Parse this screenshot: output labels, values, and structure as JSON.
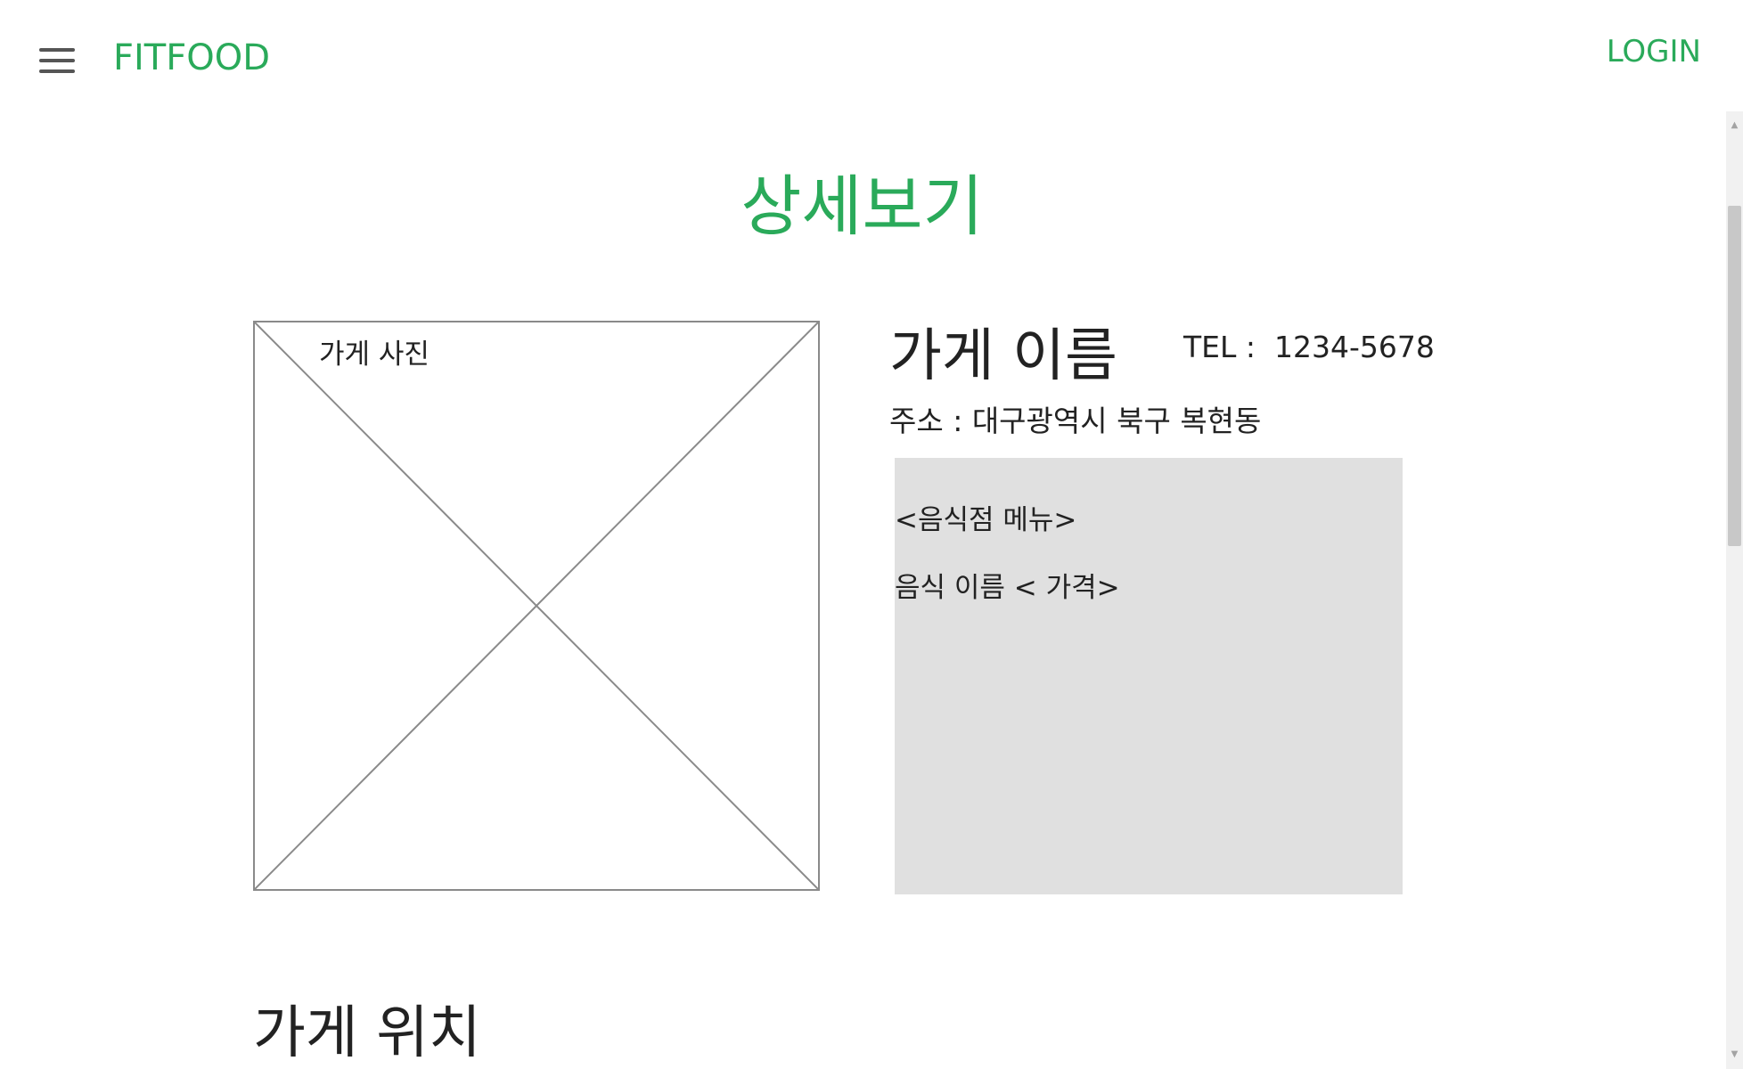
{
  "header": {
    "menu_icon": "hamburger-menu-icon",
    "brand": "FITFOOD",
    "login_label": "LOGIN",
    "brand_color": "#2aaa5a"
  },
  "page": {
    "title": "상세보기"
  },
  "store": {
    "photo_label": "가게 사진",
    "name": "가게 이름",
    "tel": "TEL :  1234-5678",
    "address": "주소 : 대구광역시 북구 복현동"
  },
  "menu": {
    "heading": "<음식점 메뉴>",
    "items": [
      "음식 이름 < 가격>"
    ],
    "background": "#e0e0e0"
  },
  "location": {
    "title": "가게 위치"
  },
  "scrollbar": {
    "up_icon": "scroll-up-arrow-icon",
    "down_icon": "scroll-down-arrow-icon"
  }
}
